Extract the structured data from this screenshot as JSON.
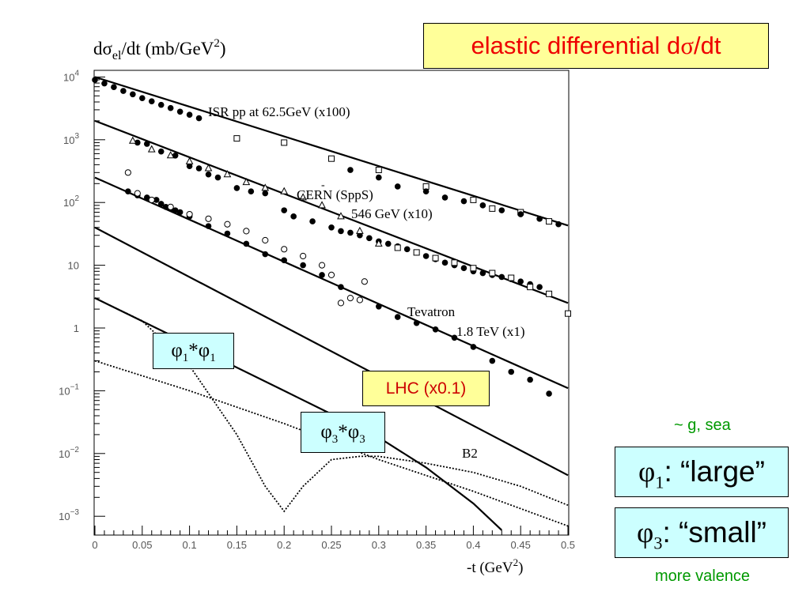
{
  "title_box": {
    "prefix": "elastic differential d",
    "sigma": "σ",
    "suffix": "/dt"
  },
  "ylabel": {
    "d": "d",
    "sigma": "σ",
    "sub": "el",
    "rest": "/dt  (mb/GeV",
    "sup": "2",
    "close": ")"
  },
  "xlabel": {
    "text": "-t  (GeV",
    "sup": "2",
    "close": ")"
  },
  "annotations": {
    "isr": "ISR pp at 62.5GeV   (x100)",
    "cern_bar": "-",
    "cern": "CERN (SppS)",
    "cern_energy": "546 GeV  (x10)",
    "tevatron": "Tevatron",
    "tevatron_energy": "1.8 TeV (x1)",
    "b2": "B2"
  },
  "boxes": {
    "lhc": "LHC (x0.1)",
    "phi11": {
      "a": "φ",
      "a_sub": "1",
      "mid": "*φ",
      "b_sub": "1"
    },
    "phi33": {
      "a": "φ",
      "a_sub": "3",
      "mid": "*φ",
      "b_sub": "3"
    },
    "phi1_large": {
      "sym": "φ",
      "sub": "1",
      "text": ": “large”"
    },
    "phi3_small": {
      "sym": "φ",
      "sub": "3",
      "text": ": “small”"
    }
  },
  "side_notes": {
    "g_sea": "~ g, sea",
    "valence": "more valence"
  },
  "colors": {
    "title": "#ee0000",
    "lhc_text": "#cc0000",
    "green_notes": "#009900",
    "cyan_box": "#ccffff",
    "yellow_box": "#ffff99"
  },
  "chart_data": {
    "type": "scatter",
    "log_y": true,
    "xlim": [
      0,
      0.5
    ],
    "ylim": [
      0.0005,
      20000
    ],
    "x_ticks": [
      "0",
      "0.05",
      "0.1",
      "0.15",
      "0.2",
      "0.25",
      "0.3",
      "0.35",
      "0.4",
      "0.45",
      "0.5"
    ],
    "y_ticks": [
      {
        "value": 10000,
        "base": "10",
        "exp": "4"
      },
      {
        "value": 1000,
        "base": "10",
        "exp": "3"
      },
      {
        "value": 100,
        "base": "10",
        "exp": "2"
      },
      {
        "value": 10,
        "base": "10",
        "exp": ""
      },
      {
        "value": 1,
        "base": "1",
        "exp": ""
      },
      {
        "value": 0.1,
        "base": "10",
        "exp": "−1"
      },
      {
        "value": 0.01,
        "base": "10",
        "exp": "−2"
      },
      {
        "value": 0.001,
        "base": "10",
        "exp": "−3"
      }
    ],
    "series": [
      {
        "name": "ISR pp at 62.5GeV (x100)",
        "kind": "fit_line",
        "x": [
          0.0,
          0.5
        ],
        "y": [
          10000,
          43
        ]
      },
      {
        "name": "ISR pp at 62.5GeV (x100)",
        "kind": "filled_points",
        "x": [
          0.0,
          0.01,
          0.02,
          0.03,
          0.04,
          0.05,
          0.06,
          0.07,
          0.08,
          0.09,
          0.1,
          0.11
        ],
        "y": [
          9000,
          7900,
          6900,
          6000,
          5300,
          4600,
          4100,
          3600,
          3200,
          2800,
          2500,
          2200
        ]
      },
      {
        "name": "ISR pp at 62.5GeV (x100)",
        "kind": "open_squares",
        "x": [
          0.15,
          0.2,
          0.25,
          0.3,
          0.35,
          0.4,
          0.42,
          0.45,
          0.48
        ],
        "y": [
          1050,
          900,
          500,
          330,
          180,
          110,
          80,
          70,
          50
        ]
      },
      {
        "name": "ISR pp at 62.5GeV (x100)",
        "kind": "filled_points",
        "x": [
          0.27,
          0.3,
          0.32,
          0.35,
          0.37,
          0.39,
          0.41,
          0.43,
          0.45,
          0.47,
          0.49
        ],
        "y": [
          330,
          250,
          180,
          150,
          120,
          105,
          90,
          75,
          65,
          55,
          45
        ]
      },
      {
        "name": "CERN (SppS) 546 GeV (x10)",
        "kind": "fit_line",
        "x": [
          0.0,
          0.5
        ],
        "y": [
          2000,
          2.5
        ]
      },
      {
        "name": "CERN (SppS) 546 GeV (x10)",
        "kind": "filled_points",
        "x": [
          0.045,
          0.055,
          0.07,
          0.085,
          0.1,
          0.11,
          0.12,
          0.13,
          0.15,
          0.165,
          0.18,
          0.2,
          0.21,
          0.23,
          0.25,
          0.26,
          0.27,
          0.28,
          0.29,
          0.3,
          0.31,
          0.32,
          0.33,
          0.34,
          0.35,
          0.36,
          0.37,
          0.38,
          0.39,
          0.4,
          0.41,
          0.42,
          0.43,
          0.44,
          0.45,
          0.46,
          0.47
        ],
        "y": [
          900,
          860,
          650,
          560,
          380,
          350,
          280,
          250,
          170,
          150,
          140,
          75,
          60,
          50,
          40,
          35,
          33,
          30,
          27,
          24,
          22,
          20,
          18,
          16,
          14,
          12.5,
          11,
          10,
          9,
          8,
          7.5,
          7,
          6.5,
          6,
          5.5,
          5,
          4.5
        ]
      },
      {
        "name": "CERN (SppS) 546 GeV (x10)",
        "kind": "open_triangles",
        "x": [
          0.04,
          0.06,
          0.08,
          0.1,
          0.12,
          0.14,
          0.16,
          0.18,
          0.2,
          0.22,
          0.24,
          0.26,
          0.28,
          0.3
        ],
        "y": [
          960,
          700,
          560,
          450,
          350,
          280,
          210,
          170,
          150,
          120,
          90,
          60,
          35,
          22
        ]
      },
      {
        "name": "CERN (SppS) 546 GeV (x10)",
        "kind": "open_squares",
        "x": [
          0.32,
          0.34,
          0.36,
          0.38,
          0.4,
          0.42,
          0.44,
          0.46,
          0.48,
          0.5
        ],
        "y": [
          19,
          16,
          13,
          11,
          9,
          7.5,
          6.3,
          4.5,
          3.5,
          1.7
        ]
      },
      {
        "name": "Tevatron 1.8 TeV (x1)",
        "kind": "fit_line",
        "x": [
          0.0,
          0.5
        ],
        "y": [
          250,
          0.11
        ]
      },
      {
        "name": "Tevatron 1.8 TeV (x1)",
        "kind": "filled_points",
        "x": [
          0.035,
          0.045,
          0.055,
          0.065,
          0.07,
          0.075,
          0.08,
          0.085,
          0.09,
          0.1,
          0.12,
          0.14,
          0.16,
          0.18,
          0.2,
          0.22,
          0.24,
          0.26,
          0.3,
          0.32,
          0.34,
          0.36,
          0.38,
          0.4,
          0.42,
          0.44,
          0.46,
          0.48
        ],
        "y": [
          150,
          130,
          120,
          110,
          95,
          85,
          80,
          75,
          70,
          60,
          42,
          32,
          22,
          15,
          12,
          10,
          7,
          4.5,
          2.2,
          1.5,
          1.2,
          0.95,
          0.7,
          0.5,
          0.3,
          0.2,
          0.15,
          0.09
        ]
      },
      {
        "name": "Tevatron 1.8 TeV (x1)",
        "kind": "open_circles",
        "x": [
          0.035,
          0.045,
          0.06,
          0.08,
          0.1,
          0.12,
          0.14,
          0.16,
          0.18,
          0.2,
          0.22,
          0.24,
          0.25,
          0.26,
          0.27,
          0.28,
          0.285
        ],
        "y": [
          300,
          140,
          110,
          85,
          65,
          55,
          45,
          35,
          25,
          18,
          14,
          10,
          7,
          2.5,
          3,
          2.8,
          5.5
        ]
      },
      {
        "name": "LHC (x0.1)",
        "kind": "fit_line",
        "x": [
          0.0,
          0.5
        ],
        "y": [
          40,
          0.0045
        ]
      },
      {
        "name": "B2",
        "kind": "solid_curve",
        "x": [
          0.0,
          0.1,
          0.2,
          0.3,
          0.35,
          0.4,
          0.43
        ],
        "y": [
          3,
          0.55,
          0.1,
          0.018,
          0.006,
          0.0016,
          0.0006
        ]
      },
      {
        "name": "φ1*φ1",
        "kind": "dotted_curve",
        "x": [
          0.0,
          0.05,
          0.1,
          0.15,
          0.18,
          0.2,
          0.22,
          0.25,
          0.28,
          0.3,
          0.35,
          0.4,
          0.45,
          0.5
        ],
        "y": [
          3,
          1.3,
          0.25,
          0.02,
          0.003,
          0.0012,
          0.003,
          0.008,
          0.009,
          0.009,
          0.007,
          0.005,
          0.003,
          0.0015
        ]
      },
      {
        "name": "φ3*φ3",
        "kind": "dotted_curve",
        "x": [
          0.0,
          0.1,
          0.2,
          0.3,
          0.4,
          0.5
        ],
        "y": [
          0.3,
          0.1,
          0.03,
          0.008,
          0.0025,
          0.0007
        ]
      }
    ]
  }
}
